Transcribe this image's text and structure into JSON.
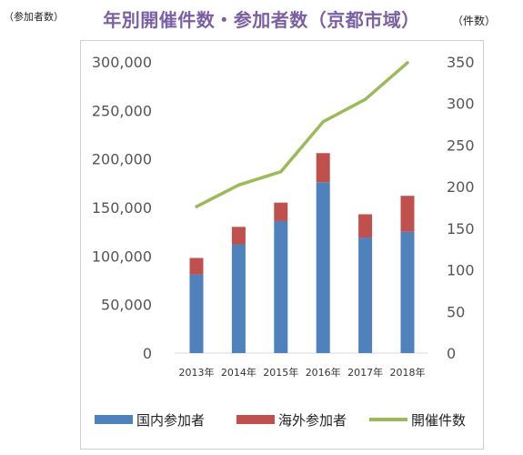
{
  "header": {
    "left_unit": "（参加者数）",
    "right_unit": "（件数）",
    "title": "年別開催件数・参加者数（京都市域）"
  },
  "chart_data": {
    "type": "bar",
    "title": "年別開催件数・参加者数（京都市域）",
    "categories": [
      "2013年",
      "2014年",
      "2015年",
      "2016年",
      "2017年",
      "2018年"
    ],
    "series": [
      {
        "name": "国内参加者",
        "kind": "stacked-bar",
        "axis": "left",
        "color": "#4f81bd",
        "values": [
          81000,
          112000,
          136000,
          176000,
          119000,
          125000
        ]
      },
      {
        "name": "海外参加者",
        "kind": "stacked-bar",
        "axis": "left",
        "color": "#c0504d",
        "values": [
          17000,
          18000,
          19000,
          30000,
          24000,
          37000
        ]
      },
      {
        "name": "開催件数",
        "kind": "line",
        "axis": "right",
        "color": "#9bbb59",
        "values": [
          176,
          202,
          218,
          278,
          305,
          349
        ]
      }
    ],
    "y_left": {
      "min": 0,
      "max": 300000,
      "ticks": [
        "0",
        "50,000",
        "100,000",
        "150,000",
        "200,000",
        "250,000",
        "300,000"
      ]
    },
    "y_right": {
      "min": 0,
      "max": 350,
      "ticks": [
        "0",
        "50",
        "100",
        "150",
        "200",
        "250",
        "300",
        "350"
      ]
    },
    "grid": false,
    "legend_position": "bottom"
  }
}
